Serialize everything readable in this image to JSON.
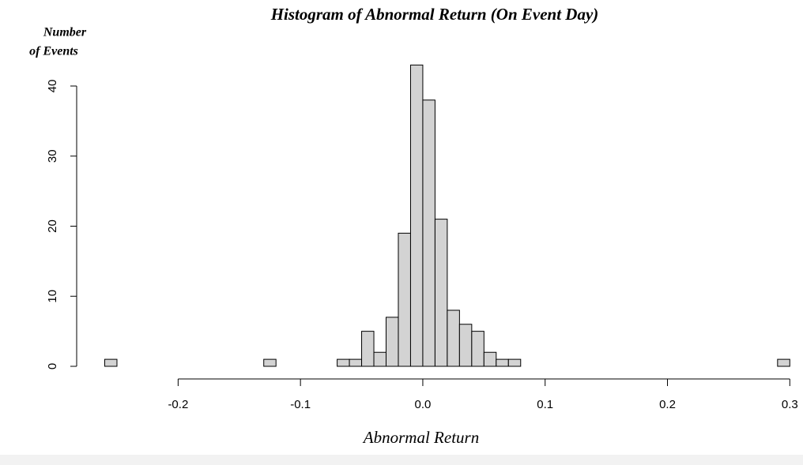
{
  "chart_data": {
    "type": "histogram",
    "title": "Histogram of Abnormal Return (On Event Day)",
    "y_label": [
      "Number",
      "of  Events"
    ],
    "x_label": "Abnormal Return",
    "bins": [
      -0.26,
      -0.25,
      -0.24,
      -0.23,
      -0.22,
      -0.21,
      -0.2,
      -0.19,
      -0.18,
      -0.17,
      -0.16,
      -0.15,
      -0.14,
      -0.13,
      -0.12,
      -0.11,
      -0.1,
      -0.09,
      -0.08,
      -0.07,
      -0.06,
      -0.05,
      -0.04,
      -0.03,
      -0.02,
      -0.01,
      0,
      0.01,
      0.02,
      0.03,
      0.04,
      0.05,
      0.06,
      0.07,
      0.08,
      0.09,
      0.1,
      0.11,
      0.12,
      0.13,
      0.14,
      0.15,
      0.16,
      0.17,
      0.18,
      0.19,
      0.2,
      0.21,
      0.22,
      0.23,
      0.24,
      0.25,
      0.26,
      0.27,
      0.28,
      0.29,
      0.3
    ],
    "values": [
      1,
      0,
      0,
      0,
      0,
      0,
      0,
      0,
      0,
      0,
      0,
      0,
      0,
      1,
      0,
      0,
      0,
      0,
      0,
      1,
      1,
      5,
      2,
      7,
      19,
      43,
      38,
      21,
      8,
      6,
      5,
      2,
      1,
      1,
      0,
      0,
      0,
      0,
      0,
      0,
      0,
      0,
      0,
      0,
      0,
      0,
      0,
      0,
      0,
      0,
      0,
      0,
      0,
      0,
      0,
      1
    ],
    "color": "#d3d3d3",
    "xlim": [
      -0.26,
      0.3
    ],
    "xticks": [
      -0.2,
      -0.1,
      {
        "value": 0,
        "label": "0.0"
      },
      0.1,
      0.2,
      0.3
    ],
    "ylim": [
      0,
      45
    ],
    "yticks": [
      0,
      10,
      20,
      30,
      40
    ]
  }
}
